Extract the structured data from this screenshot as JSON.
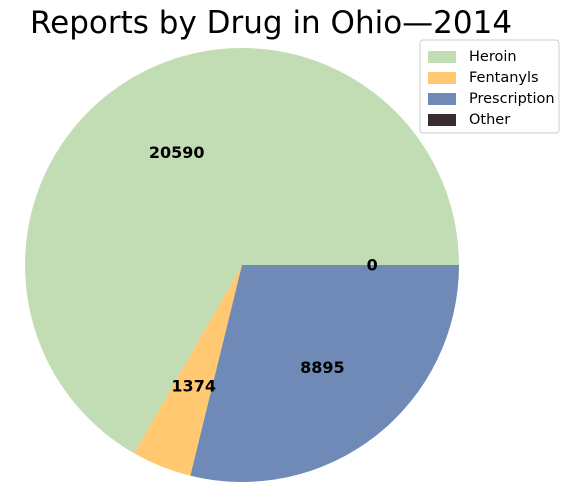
{
  "chart_data": {
    "type": "pie",
    "title": "Reports by Drug in Ohio—2014",
    "categories": [
      "Heroin",
      "Fentanyls",
      "Prescription",
      "Other"
    ],
    "values": [
      20590,
      1374,
      8895,
      0
    ],
    "labels": [
      "20590",
      "1374",
      "8895",
      "0"
    ],
    "colors": [
      "#c2dcb3",
      "#ffc871",
      "#6f8ab7",
      "#372c2e"
    ],
    "start_angle_deg": 0,
    "direction": "counterclockwise",
    "legend_position": "top-right"
  }
}
